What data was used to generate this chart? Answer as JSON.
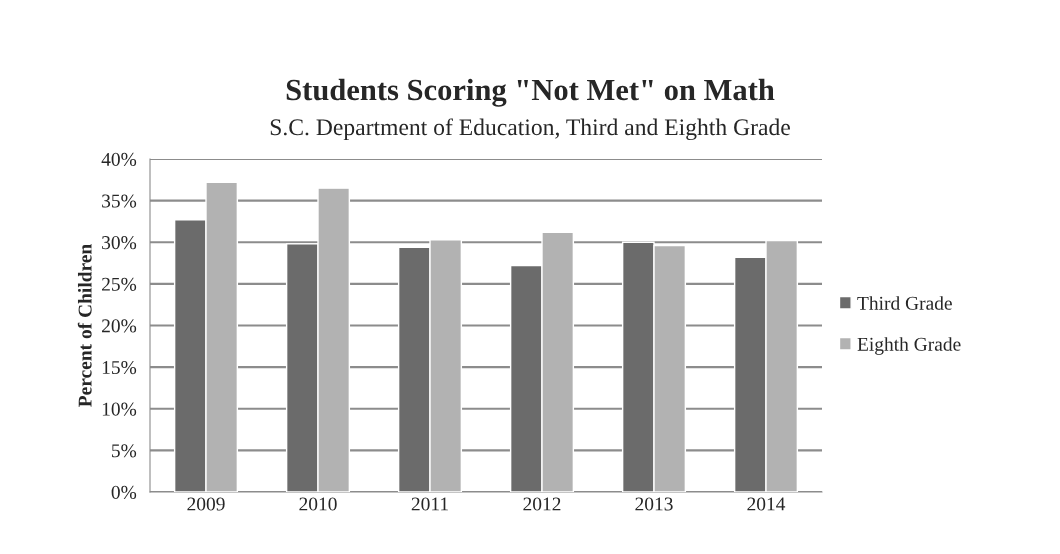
{
  "chart_data": {
    "type": "bar",
    "title": "Students Scoring \"Not Met\" on Math",
    "subtitle": "S.C. Department of Education, Third and Eighth Grade",
    "ylabel": "Percent of Children",
    "categories": [
      "2009",
      "2010",
      "2011",
      "2012",
      "2013",
      "2014"
    ],
    "series": [
      {
        "name": "Third Grade",
        "color": "#6b6b6b",
        "values": [
          32.7,
          29.8,
          29.4,
          27.2,
          30.0,
          28.2
        ]
      },
      {
        "name": "Eighth Grade",
        "color": "#b2b2b2",
        "values": [
          37.2,
          36.5,
          30.3,
          31.2,
          29.6,
          30.2
        ]
      }
    ],
    "ylim": [
      0,
      40
    ],
    "yticks": [
      {
        "value": 0,
        "label": "0%"
      },
      {
        "value": 5,
        "label": "5%"
      },
      {
        "value": 10,
        "label": "10%"
      },
      {
        "value": 15,
        "label": "15%"
      },
      {
        "value": 20,
        "label": "20%"
      },
      {
        "value": 25,
        "label": "25%"
      },
      {
        "value": 30,
        "label": "30%"
      },
      {
        "value": 35,
        "label": "35%"
      },
      {
        "value": 40,
        "label": "40%"
      }
    ],
    "grid": "y",
    "legend": "right"
  }
}
